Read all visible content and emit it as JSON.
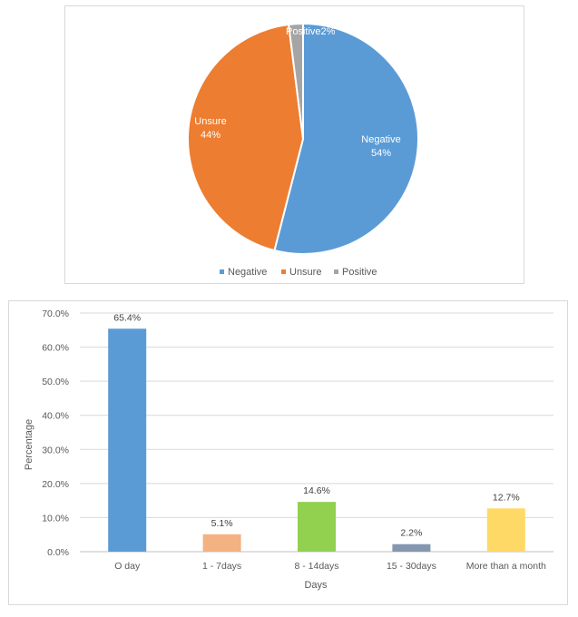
{
  "pie_chart": {
    "type": "pie",
    "slices": [
      {
        "name": "Negative",
        "value": 54,
        "label": "54%",
        "color": "#5b9bd5"
      },
      {
        "name": "Unsure",
        "value": 44,
        "label": "44%",
        "color": "#ed7d31"
      },
      {
        "name": "Positive",
        "value": 2,
        "label": "2%",
        "color": "#a5a5a5"
      }
    ],
    "legend": [
      "Negative",
      "Unsure",
      "Positive"
    ],
    "legend_position": "bottom"
  },
  "bar_chart": {
    "type": "bar",
    "categories": [
      "O day",
      "1 - 7days",
      "8 - 14days",
      "15 - 30days",
      "More than a month"
    ],
    "values": [
      65.4,
      5.1,
      14.6,
      2.2,
      12.7
    ],
    "data_labels": [
      "65.4%",
      "5.1%",
      "14.6%",
      "2.2%",
      "12.7%"
    ],
    "colors": [
      "#5b9bd5",
      "#f4b183",
      "#92d050",
      "#8497b0",
      "#ffd966"
    ],
    "xlabel": "Days",
    "ylabel": "Percentage",
    "ylim": [
      0,
      70
    ],
    "yticks": [
      "0.0%",
      "10.0%",
      "20.0%",
      "30.0%",
      "40.0%",
      "50.0%",
      "60.0%",
      "70.0%"
    ],
    "grid": true
  },
  "chart_data": [
    {
      "type": "pie",
      "categories": [
        "Negative",
        "Unsure",
        "Positive"
      ],
      "values": [
        54,
        44,
        2
      ],
      "legend": "bottom"
    },
    {
      "type": "bar",
      "categories": [
        "O day",
        "1 - 7days",
        "8 - 14days",
        "15 - 30days",
        "More than a month"
      ],
      "values": [
        65.4,
        5.1,
        14.6,
        2.2,
        12.7
      ],
      "xlabel": "Days",
      "ylabel": "Percentage",
      "ylim": [
        0,
        70
      ],
      "grid": true
    }
  ]
}
